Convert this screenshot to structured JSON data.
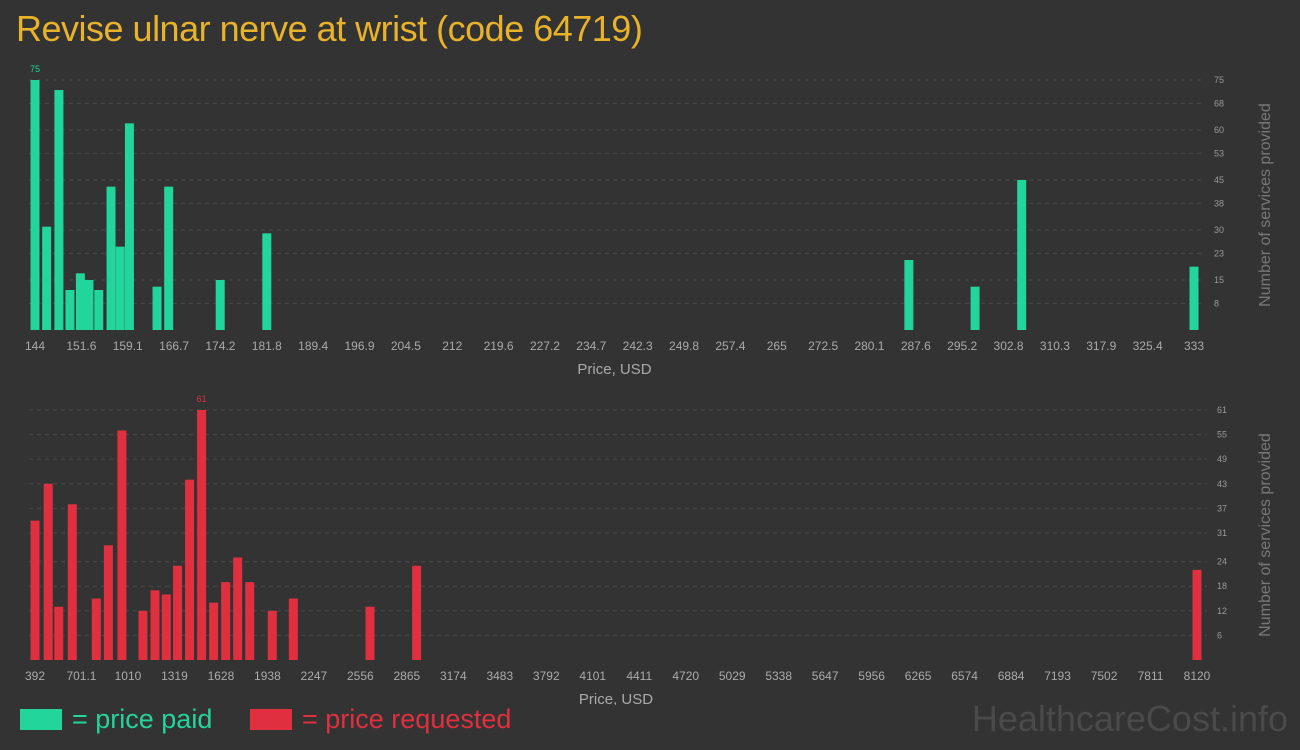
{
  "title": "Revise ulnar nerve at wrist (code 64719)",
  "colors": {
    "paid": "#21D59B",
    "requested": "#E0303F",
    "title": "#E8B32B"
  },
  "legend": {
    "paid": "= price paid",
    "requested": "= price requested"
  },
  "watermark": "HealthcareCost.info",
  "chart_data": [
    {
      "type": "bar",
      "series": [
        {
          "name": "price paid"
        }
      ],
      "xlabel": "Price, USD",
      "ylabel": "Number of services provided",
      "xlim": [
        144,
        333
      ],
      "ylim": [
        0,
        75
      ],
      "x_ticks": [
        "144",
        "151.6",
        "159.1",
        "166.7",
        "174.2",
        "181.8",
        "189.4",
        "196.9",
        "204.5",
        "212",
        "219.6",
        "227.2",
        "234.7",
        "242.3",
        "249.8",
        "257.4",
        "265",
        "272.5",
        "280.1",
        "287.6",
        "295.2",
        "302.8",
        "310.3",
        "317.9",
        "325.4",
        "333"
      ],
      "y_ticks": [
        "8",
        "15",
        "23",
        "30",
        "38",
        "45",
        "53",
        "60",
        "68",
        "75"
      ],
      "max_label": "75",
      "x": [
        144,
        145.9,
        147.9,
        149.7,
        151.4,
        152.8,
        154.4,
        156.4,
        157.9,
        159.4,
        163.9,
        165.8,
        174.2,
        181.8,
        286.5,
        297.3,
        304.9,
        333
      ],
      "values": [
        75,
        31,
        72,
        12,
        17,
        15,
        12,
        43,
        25,
        62,
        13,
        43,
        15,
        29,
        21,
        13,
        45,
        19
      ]
    },
    {
      "type": "bar",
      "series": [
        {
          "name": "price requested"
        }
      ],
      "xlabel": "Price, USD",
      "ylabel": "Number of services provided",
      "xlim": [
        392,
        8120
      ],
      "ylim": [
        0,
        61
      ],
      "x_ticks": [
        "392",
        "701.1",
        "1010",
        "1319",
        "1628",
        "1938",
        "2247",
        "2556",
        "2865",
        "3174",
        "3483",
        "3792",
        "4101",
        "4411",
        "4720",
        "5029",
        "5338",
        "5647",
        "5956",
        "6265",
        "6574",
        "6884",
        "7193",
        "7502",
        "7811",
        "8120"
      ],
      "y_ticks": [
        "6",
        "12",
        "18",
        "24",
        "31",
        "37",
        "43",
        "49",
        "55",
        "61"
      ],
      "max_label": "61",
      "x": [
        392,
        480,
        550,
        640,
        800,
        880,
        970,
        1110,
        1190,
        1265,
        1340,
        1420,
        1500,
        1580,
        1660,
        1740,
        1820,
        1970,
        2110,
        2620,
        2930,
        8120
      ],
      "values": [
        34,
        43,
        13,
        38,
        15,
        28,
        56,
        12,
        17,
        16,
        23,
        44,
        61,
        14,
        19,
        25,
        19,
        12,
        15,
        13,
        23,
        22
      ]
    }
  ]
}
